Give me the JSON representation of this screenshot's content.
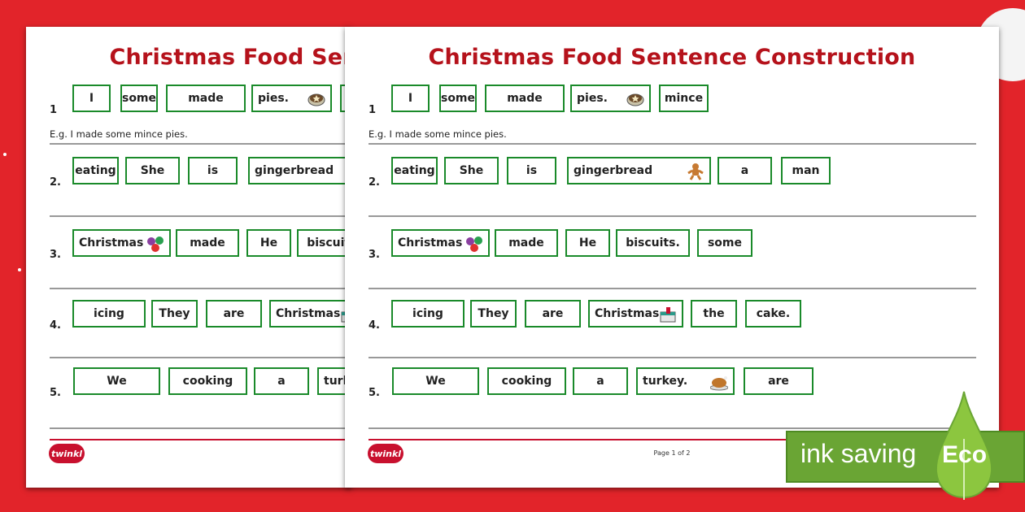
{
  "worksheet": {
    "title": "Christmas Food Sentence Construction",
    "example": "E.g. I made some mince pies.",
    "page_label": "Page 1 of 2",
    "logo": "twinkl",
    "rows": [
      {
        "number": "1",
        "words": [
          {
            "text": "I"
          },
          {
            "text": "some"
          },
          {
            "text": "made"
          },
          {
            "text": "pies.",
            "icon": "mince-pie-icon"
          },
          {
            "text": "mince"
          }
        ]
      },
      {
        "number": "2.",
        "words": [
          {
            "text": "eating"
          },
          {
            "text": "She"
          },
          {
            "text": "is"
          },
          {
            "text": "gingerbread",
            "icon": "gingerbread-man-icon"
          },
          {
            "text": "a"
          },
          {
            "text": "man"
          }
        ]
      },
      {
        "number": "3.",
        "words": [
          {
            "text": "Christmas",
            "icon": "baubles-icon"
          },
          {
            "text": "made"
          },
          {
            "text": "He"
          },
          {
            "text": "biscuits."
          },
          {
            "text": "some"
          }
        ]
      },
      {
        "number": "4.",
        "words": [
          {
            "text": "icing"
          },
          {
            "text": "They"
          },
          {
            "text": "are"
          },
          {
            "text": "Christmas",
            "icon": "christmas-cake-icon"
          },
          {
            "text": "the"
          },
          {
            "text": "cake."
          }
        ]
      },
      {
        "number": "5.",
        "words": [
          {
            "text": "We"
          },
          {
            "text": "cooking"
          },
          {
            "text": "a"
          },
          {
            "text": "turkey.",
            "icon": "roast-turkey-icon"
          },
          {
            "text": "are"
          }
        ]
      }
    ]
  },
  "badge": {
    "label": "ink saving",
    "eco": "Eco"
  },
  "colors": {
    "background": "#e2242a",
    "title": "#b5121b",
    "box_border": "#1a8a2a",
    "badge": "#6aa534"
  }
}
